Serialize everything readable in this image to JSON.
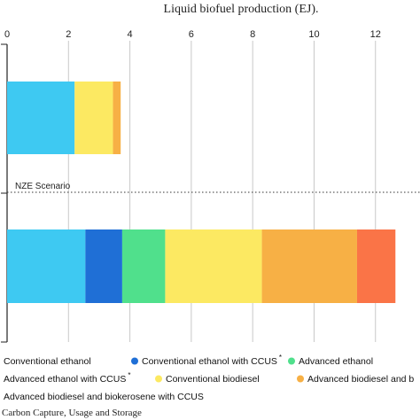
{
  "chart_data": {
    "type": "bar",
    "orientation": "horizontal",
    "stacked": true,
    "title": "Liquid biofuel production (EJ).",
    "xlim": [
      0,
      12.7
    ],
    "xticks": [
      0,
      2,
      4,
      6,
      8,
      10,
      12
    ],
    "xtick_labels": [
      "0",
      "2",
      "4",
      "6",
      "8",
      "10",
      "12"
    ],
    "grid": "vertical",
    "scenario_label": "NZE Scenario",
    "categories": [
      "",
      ""
    ],
    "series": [
      {
        "name": "Conventional ethanol",
        "color": "#3ec9f2",
        "values": [
          2.2,
          2.55
        ]
      },
      {
        "name": "Conventional ethanol with CCUS",
        "color": "#1f6fd6",
        "values": [
          0,
          1.2
        ]
      },
      {
        "name": "Advanced ethanol",
        "color": "#50e08c",
        "values": [
          0,
          1.4
        ]
      },
      {
        "name": "Conventional biodiesel",
        "color": "#fce962",
        "values": [
          1.25,
          3.15
        ]
      },
      {
        "name": "Advanced biodiesel and b",
        "color": "#f7b045",
        "values": [
          0.25,
          3.1
        ]
      },
      {
        "name": "Advanced biodiesel and biokerosene with CCUS",
        "color": "#fa7447",
        "values": [
          0,
          1.25
        ]
      }
    ],
    "legend": [
      {
        "text": "Conventional ethanol",
        "marker": false,
        "color": "#3ec9f2"
      },
      {
        "text": "Conventional ethanol with CCUS",
        "sup": "*",
        "marker": true,
        "color": "#1f6fd6"
      },
      {
        "text": "Advanced ethanol",
        "marker": true,
        "color": "#50e08c"
      },
      {
        "text": "Advanced ethanol with CCUS",
        "sup": "*",
        "marker": false,
        "color": "#b1b1b1"
      },
      {
        "text": "Conventional biodiesel",
        "marker": true,
        "color": "#fce962"
      },
      {
        "text": "Advanced biodiesel and b",
        "marker": true,
        "color": "#f7b045"
      },
      {
        "text": "Advanced biodiesel and biokerosene with CCUS",
        "marker": false,
        "color": "#fa7447"
      }
    ],
    "footnote": "Carbon Capture, Usage and Storage"
  }
}
